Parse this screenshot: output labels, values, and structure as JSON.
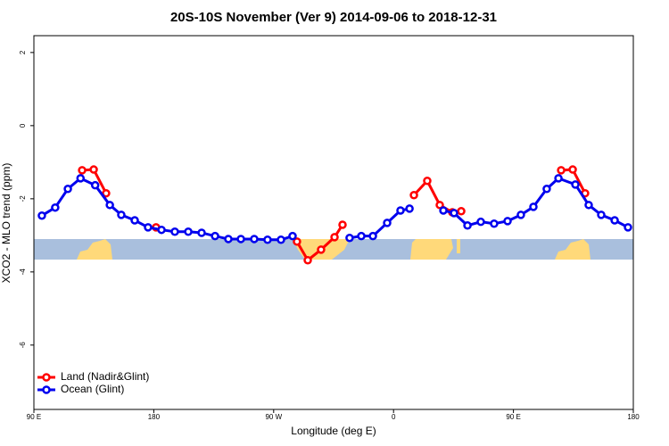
{
  "chart_data": {
    "type": "line",
    "title": "20S-10S November (Ver 9)   2014-09-06 to 2018-12-31",
    "xlabel": "Longitude (deg E)",
    "ylabel": "XCO2 - MLO trend (ppm)",
    "xlim": [
      90,
      540
    ],
    "xticks": [
      {
        "value": 90,
        "label": "90 E"
      },
      180,
      {
        "value": 270,
        "label": "90 W"
      },
      {
        "value": 360,
        "label": "0"
      },
      {
        "value": 450,
        "label": "90 E"
      },
      {
        "value": 540,
        "label": "180"
      }
    ],
    "ylim": [
      -7.76,
      2.46
    ],
    "yticks": [
      2,
      0,
      -2,
      -4,
      -6
    ],
    "legend": "bottom-left",
    "series": [
      {
        "name": "Land (Nadir&Glint)",
        "color": "#ff0000",
        "x": [
          126.2,
          134.9,
          144.2,
          null,
          181.7,
          null,
          287.5,
          295.6,
          305.6,
          315.7,
          321.7,
          null,
          375.3,
          385.3,
          394.7,
          404.1,
          410.8,
          null,
          485.8,
          494.5,
          503.8
        ],
        "values": [
          -1.22,
          -1.2,
          -1.85,
          null,
          -2.78,
          null,
          -3.17,
          -3.68,
          -3.39,
          -3.05,
          -2.71,
          null,
          -1.9,
          -1.51,
          -2.17,
          -2.37,
          -2.34,
          null,
          -1.22,
          -1.2,
          -1.85
        ]
      },
      {
        "name": "Ocean (Glint)",
        "color": "#0000ee",
        "x": [
          96,
          106,
          115.5,
          125,
          136,
          147,
          155.6,
          165.7,
          175.7,
          185.8,
          195.8,
          205.9,
          215.9,
          226,
          236,
          245.4,
          255.4,
          265.4,
          275.5,
          284.2,
          null,
          327,
          335.8,
          344.5,
          355.2,
          365.2,
          372,
          null,
          397.4,
          405.4,
          415.5,
          425.5,
          435.5,
          445.6,
          455.6,
          465,
          475,
          483.8,
          496.5,
          506.5,
          515.9,
          526,
          536
        ],
        "values": [
          -2.46,
          -2.24,
          -1.73,
          -1.44,
          -1.63,
          -2.17,
          -2.44,
          -2.59,
          -2.78,
          -2.85,
          -2.9,
          -2.9,
          -2.93,
          -3.02,
          -3.1,
          -3.1,
          -3.1,
          -3.12,
          -3.12,
          -3.02,
          null,
          -3.07,
          -3.02,
          -3.02,
          -2.66,
          -2.32,
          -2.27,
          null,
          -2.32,
          -2.39,
          -2.73,
          -2.63,
          -2.68,
          -2.61,
          -2.44,
          -2.22,
          -1.73,
          -1.44,
          -1.61,
          -2.17,
          -2.44,
          -2.59,
          -2.78
        ]
      }
    ]
  }
}
